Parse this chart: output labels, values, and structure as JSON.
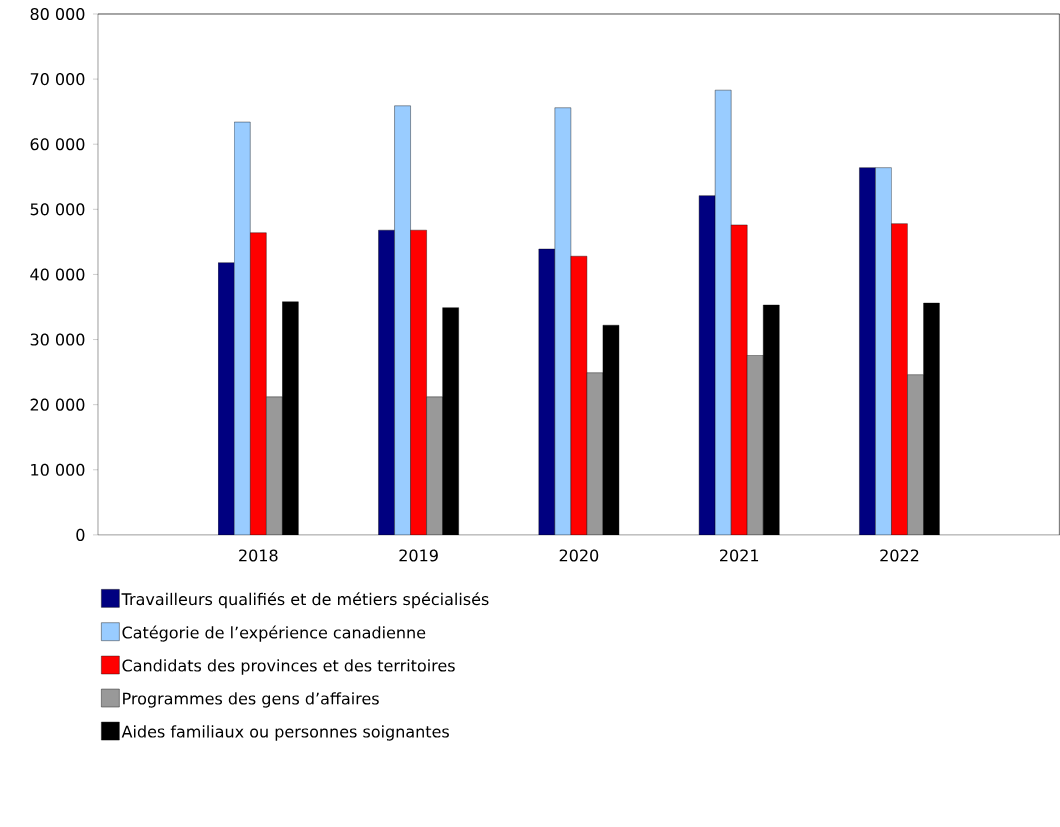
{
  "chart_data": {
    "type": "bar",
    "categories": [
      "2018",
      "2019",
      "2020",
      "2021",
      "2022"
    ],
    "series": [
      {
        "name": "Travailleurs qualifiés et de métiers spécialisés",
        "color": "#000080",
        "values": [
          41800,
          46800,
          43900,
          52100,
          56400
        ]
      },
      {
        "name": "Catégorie de l’expérience canadienne",
        "color": "#99ccff",
        "values": [
          63400,
          65900,
          65600,
          68300,
          56400
        ]
      },
      {
        "name": "Candidats des provinces et des territoires",
        "color": "#ff0000",
        "values": [
          46400,
          46800,
          42800,
          47600,
          47800
        ]
      },
      {
        "name": "Programmes des gens d’affaires",
        "color": "#999999",
        "values": [
          21200,
          21200,
          24900,
          27600,
          24600
        ]
      },
      {
        "name": "Aides familiaux ou personnes soignantes",
        "color": "#000000",
        "values": [
          35800,
          34900,
          32200,
          35300,
          35600
        ]
      }
    ],
    "ylim": [
      0,
      80000
    ],
    "yticks": [
      {
        "value": 0,
        "label": "0"
      },
      {
        "value": 10000,
        "label": "10 000"
      },
      {
        "value": 20000,
        "label": "20 000"
      },
      {
        "value": 30000,
        "label": "30 000"
      },
      {
        "value": 40000,
        "label": "40 000"
      },
      {
        "value": 50000,
        "label": "50 000"
      },
      {
        "value": 60000,
        "label": "60 000"
      },
      {
        "value": 70000,
        "label": "70 000"
      },
      {
        "value": 80000,
        "label": "80 000"
      }
    ],
    "legend": "bottom",
    "grid": false
  }
}
